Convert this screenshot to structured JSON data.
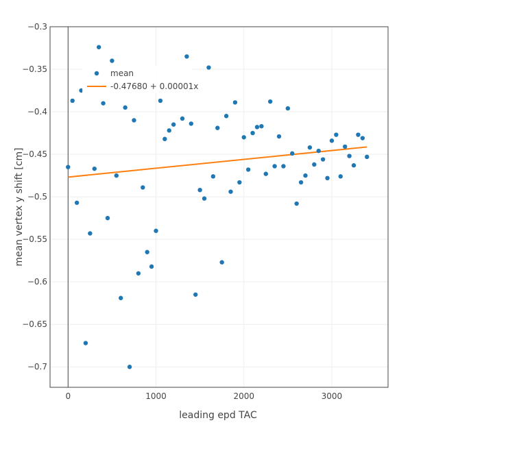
{
  "chart_data": {
    "type": "scatter",
    "title": "",
    "xlabel": "leading epd TAC",
    "ylabel": "mean vertex y shift [cm]",
    "xlim": [
      -205,
      3640
    ],
    "ylim": [
      -0.724,
      -0.3
    ],
    "x_ticks": [
      0,
      1000,
      2000,
      3000
    ],
    "x_tick_labels": [
      "0",
      "1000",
      "2000",
      "3000"
    ],
    "y_ticks": [
      -0.3,
      -0.35,
      -0.4,
      -0.45,
      -0.5,
      -0.55,
      -0.6,
      -0.65,
      -0.7
    ],
    "y_tick_labels": [
      "−0.3",
      "−0.35",
      "−0.4",
      "−0.45",
      "−0.5",
      "−0.55",
      "−0.6",
      "−0.65",
      "−0.7"
    ],
    "grid": true,
    "zero_line": true,
    "legend": {
      "placement": "top-left"
    },
    "colors": {
      "points": "#1f77b4",
      "fit": "#ff7f0e",
      "grid": "#eeeeee",
      "zero_line": "#444444",
      "frame": "#444444"
    },
    "series": [
      {
        "name": "mean",
        "mode": "markers",
        "x": [
          0,
          50,
          100,
          150,
          200,
          250,
          300,
          325,
          350,
          400,
          450,
          500,
          550,
          600,
          650,
          700,
          750,
          800,
          850,
          900,
          950,
          1000,
          1050,
          1100,
          1150,
          1200,
          1300,
          1350,
          1400,
          1450,
          1500,
          1550,
          1600,
          1650,
          1700,
          1750,
          1800,
          1850,
          1900,
          1950,
          2000,
          2050,
          2100,
          2150,
          2200,
          2250,
          2300,
          2350,
          2400,
          2450,
          2500,
          2550,
          2600,
          2650,
          2700,
          2750,
          2800,
          2850,
          2900,
          2950,
          3000,
          3050,
          3100,
          3150,
          3200,
          3250,
          3300,
          3350,
          3400
        ],
        "y": [
          -0.465,
          -0.387,
          -0.507,
          -0.375,
          -0.672,
          -0.543,
          -0.467,
          -0.355,
          -0.324,
          -0.39,
          -0.525,
          -0.34,
          -0.475,
          -0.619,
          -0.395,
          -0.7,
          -0.41,
          -0.59,
          -0.489,
          -0.565,
          -0.582,
          -0.54,
          -0.387,
          -0.432,
          -0.422,
          -0.415,
          -0.408,
          -0.335,
          -0.414,
          -0.615,
          -0.492,
          -0.502,
          -0.348,
          -0.476,
          -0.419,
          -0.577,
          -0.405,
          -0.494,
          -0.389,
          -0.483,
          -0.43,
          -0.468,
          -0.425,
          -0.418,
          -0.417,
          -0.473,
          -0.388,
          -0.464,
          -0.429,
          -0.464,
          -0.396,
          -0.449,
          -0.508,
          -0.483,
          -0.475,
          -0.442,
          -0.462,
          -0.446,
          -0.456,
          -0.478,
          -0.434,
          -0.427,
          -0.476,
          -0.441,
          -0.452,
          -0.463,
          -0.427,
          -0.431,
          -0.453
        ]
      },
      {
        "name": "-0.47680 + 0.00001x",
        "mode": "line",
        "x": [
          0,
          3400
        ],
        "y": [
          -0.4768,
          -0.4414
        ]
      }
    ]
  }
}
